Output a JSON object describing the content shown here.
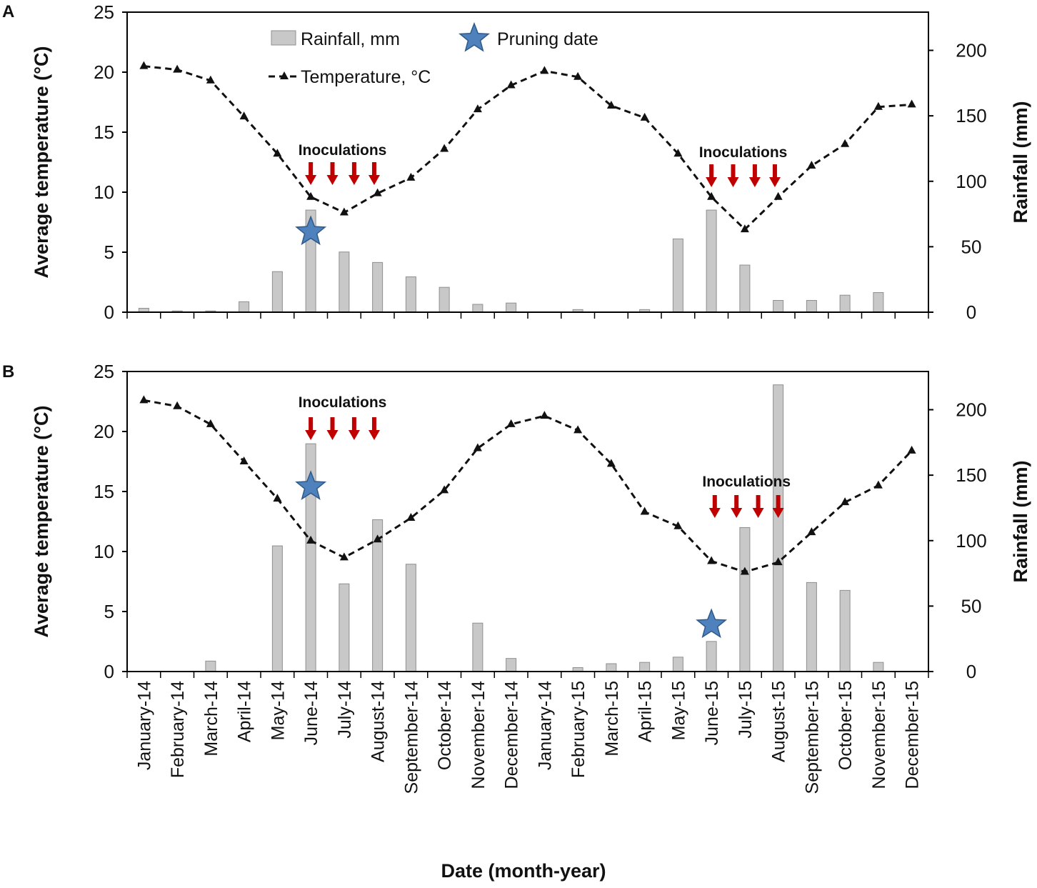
{
  "chart_data": {
    "type": "bar+line",
    "shared": {
      "categories": [
        "January-14",
        "February-14",
        "March-14",
        "April-14",
        "May-14",
        "June-14",
        "July-14",
        "August-14",
        "September-14",
        "October-14",
        "November-14",
        "December-14",
        "January-14",
        "February-15",
        "March-15",
        "April-15",
        "May-15",
        "June-15",
        "July-15",
        "August-15",
        "September-15",
        "October-15",
        "November-15",
        "December-15"
      ],
      "xlabel": "Date (month-year)",
      "ylabel_left": "Average temperature (°C)",
      "ylabel_right": "Rainfall (mm)",
      "left_ticks": [
        "0",
        "5",
        "10",
        "15",
        "20",
        "25"
      ],
      "right_ticks": [
        "0",
        "50",
        "100",
        "150",
        "200"
      ],
      "ylim_left": [
        0,
        25
      ],
      "ylim_right": [
        0,
        229.2
      ],
      "legend": {
        "rainfall": "Rainfall, mm",
        "pruning": "Pruning date",
        "temperature": "Temperature, °C"
      },
      "colors": {
        "bar_fill": "#c8c8c8",
        "bar_stroke": "#8f8f8f",
        "line": "#111111",
        "arrow": "#c00000",
        "star_fill": "#4f81bd",
        "star_stroke": "#2e5a8a"
      }
    },
    "panels": [
      {
        "label": "A",
        "rainfall_mm": [
          3,
          1,
          1,
          8,
          31,
          78,
          46,
          38,
          27,
          19,
          6,
          7,
          0,
          2,
          0,
          2,
          56,
          78,
          36,
          9,
          9,
          13,
          15,
          0
        ],
        "temperature_c": [
          20.5,
          20.2,
          19.3,
          16.3,
          13.2,
          9.6,
          8.3,
          9.9,
          11.2,
          13.6,
          16.9,
          18.9,
          20.1,
          19.6,
          17.2,
          16.2,
          13.2,
          9.6,
          6.9,
          9.6,
          12.2,
          14.0,
          17.1,
          17.3
        ],
        "pruning_star": {
          "category_index": 5,
          "temperature_value": 6.7
        },
        "inoculations": {
          "label": "Inoculations",
          "category_positions": [
            5.0,
            5.65,
            6.3,
            6.9
          ]
        },
        "inoculations_2": {
          "label": "Inoculations",
          "category_positions": [
            17.0,
            17.65,
            18.3,
            18.9
          ]
        }
      },
      {
        "label": "B",
        "rainfall_mm": [
          0,
          0,
          8,
          0,
          96,
          174,
          67,
          116,
          82,
          0,
          37,
          10,
          0,
          3,
          6,
          7,
          11,
          23,
          110,
          219,
          68,
          62,
          7,
          0
        ],
        "temperature_c": [
          22.6,
          22.1,
          20.6,
          17.5,
          14.4,
          10.9,
          9.5,
          11.0,
          12.8,
          15.1,
          18.6,
          20.6,
          21.3,
          20.1,
          17.3,
          13.3,
          12.1,
          9.2,
          8.3,
          9.1,
          11.6,
          14.1,
          15.5,
          18.4
        ],
        "pruning_star": {
          "category_index": 5,
          "temperature_value": 15.4
        },
        "pruning_star_2": {
          "category_index": 17,
          "temperature_value": 3.9
        },
        "inoculations": {
          "label": "Inoculations",
          "category_positions": [
            5.0,
            5.65,
            6.3,
            6.9
          ]
        },
        "inoculations_2": {
          "label": "Inoculations",
          "category_positions": [
            17.1,
            17.75,
            18.4,
            19.0
          ]
        }
      }
    ]
  }
}
